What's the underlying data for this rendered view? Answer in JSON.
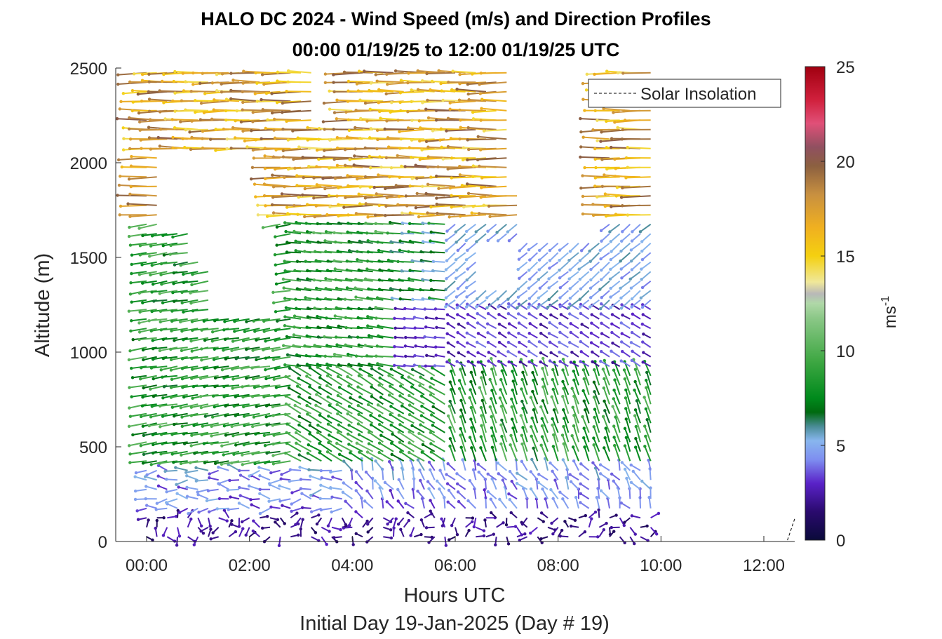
{
  "chart_data": {
    "type": "quiver",
    "title": "HALO DC 2024 - Wind Speed (m/s) and Direction Profiles",
    "subtitle": "00:00 01/19/25 to 12:00 01/19/25  UTC",
    "xlabel": "Hours UTC",
    "xlabel2": "Initial Day 19-Jan-2025 (Day # 19)",
    "ylabel": "Altitude (m)",
    "colorbar_label": "ms",
    "colorbar_label_exponent": "-1",
    "xlim_hours": [
      -0.6,
      12.6
    ],
    "ylim": [
      0,
      2500
    ],
    "xticks": [
      0,
      2,
      4,
      6,
      8,
      10,
      12
    ],
    "xtick_labels": [
      "00:00",
      "02:00",
      "04:00",
      "06:00",
      "08:00",
      "10:00",
      "12:00"
    ],
    "yticks": [
      0,
      500,
      1000,
      1500,
      2000,
      2500
    ],
    "ytick_labels": [
      "0",
      "500",
      "1000",
      "1500",
      "2000",
      "2500"
    ],
    "colorbar_range": [
      0,
      25
    ],
    "colorbar_ticks": [
      0,
      5,
      10,
      15,
      20,
      25
    ],
    "colorbar_tick_labels": [
      "0",
      "5",
      "10",
      "15",
      "20",
      "25"
    ],
    "legend": {
      "entries": [
        "Solar Insolation"
      ],
      "placement": "top-right"
    },
    "solar_insolation": {
      "style": "dashed",
      "x_hours": [
        -0.6,
        12.45,
        12.6
      ],
      "y_m": [
        0,
        0,
        120
      ]
    },
    "profiles": {
      "time_start_h": 0.0,
      "time_end_h": 9.8,
      "time_step_h": 0.2,
      "altitude_step_m": 50,
      "regimes": [
        {
          "altitude_range_m": [
            0,
            150
          ],
          "speed_ms": [
            1,
            3
          ],
          "direction": "variable"
        },
        {
          "altitude_range_m": [
            150,
            400
          ],
          "speed_ms": [
            2,
            5
          ],
          "direction": "variable"
        },
        {
          "altitude_range_m": [
            400,
            1700
          ],
          "speed_ms": [
            6,
            11
          ],
          "direction": "westerly to northwesterly"
        },
        {
          "altitude_range_m": [
            1700,
            2500
          ],
          "speed_ms": [
            13,
            20
          ],
          "direction": "westerly"
        }
      ]
    },
    "grid": false
  }
}
